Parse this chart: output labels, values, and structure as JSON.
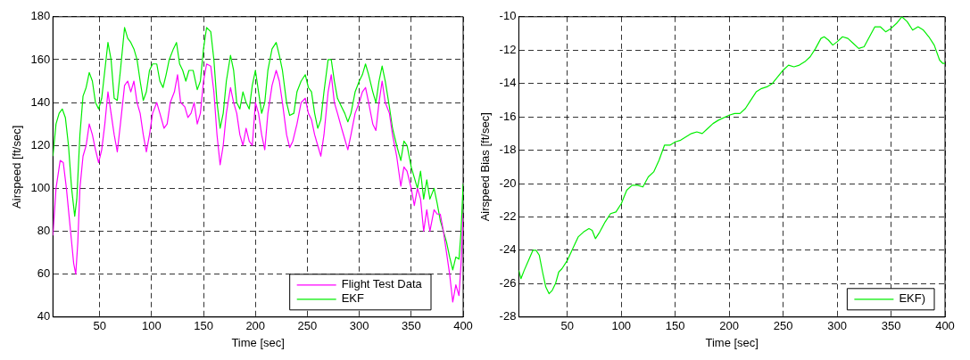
{
  "chart_data": [
    {
      "type": "line",
      "xlabel": "Time [sec]",
      "ylabel": "Airspeed [ft/sec]",
      "xlim": [
        5,
        400
      ],
      "ylim": [
        40,
        180
      ],
      "xticks": [
        50,
        100,
        150,
        200,
        250,
        300,
        350,
        400
      ],
      "yticks": [
        40,
        60,
        80,
        100,
        120,
        140,
        160,
        180
      ],
      "grid": true,
      "legend": "bottom right",
      "series": [
        {
          "name": "Flight Test Data",
          "color": "#ff00ff",
          "x": [
            5,
            8,
            12,
            15,
            18,
            22,
            25,
            27,
            29,
            31,
            34,
            37,
            40,
            43,
            46,
            49,
            52,
            55,
            58,
            61,
            64,
            67,
            70,
            74,
            77,
            80,
            83,
            86,
            89,
            92,
            95,
            98,
            101,
            105,
            108,
            112,
            115,
            118,
            122,
            125,
            128,
            132,
            135,
            138,
            141,
            144,
            147,
            150,
            153,
            157,
            160,
            163,
            166,
            169,
            172,
            176,
            179,
            182,
            185,
            188,
            191,
            194,
            197,
            200,
            203,
            206,
            209,
            212,
            216,
            220,
            223,
            226,
            230,
            233,
            236,
            240,
            244,
            248,
            251,
            254,
            257,
            260,
            263,
            266,
            270,
            273,
            276,
            279,
            283,
            286,
            289,
            292,
            296,
            300,
            303,
            306,
            309,
            313,
            316,
            319,
            322,
            325,
            329,
            332,
            336,
            340,
            343,
            346,
            350,
            353,
            356,
            359,
            362,
            365,
            368,
            372,
            375,
            378,
            381,
            384,
            387,
            390,
            393,
            396,
            398,
            400
          ],
          "values": [
            78,
            100,
            113,
            112,
            100,
            80,
            65,
            60,
            75,
            100,
            115,
            120,
            130,
            125,
            118,
            112,
            118,
            130,
            145,
            135,
            125,
            117,
            130,
            148,
            150,
            145,
            150,
            140,
            135,
            125,
            117,
            125,
            135,
            140,
            135,
            128,
            130,
            140,
            145,
            153,
            140,
            138,
            133,
            135,
            140,
            130,
            135,
            150,
            158,
            157,
            145,
            125,
            111,
            120,
            135,
            147,
            140,
            135,
            125,
            120,
            128,
            122,
            120,
            140,
            135,
            125,
            118,
            135,
            148,
            155,
            150,
            140,
            125,
            119,
            122,
            130,
            140,
            142,
            135,
            132,
            125,
            120,
            115,
            125,
            145,
            153,
            140,
            135,
            128,
            123,
            118,
            125,
            135,
            140,
            145,
            147,
            140,
            130,
            127,
            140,
            150,
            140,
            135,
            125,
            115,
            101,
            110,
            108,
            100,
            92,
            100,
            95,
            80,
            90,
            80,
            90,
            88,
            88,
            80,
            70,
            60,
            47,
            55,
            50,
            65,
            88
          ]
        },
        {
          "name": "EKF",
          "color": "#00ee00",
          "x": [
            5,
            8,
            11,
            14,
            17,
            20,
            23,
            26,
            28,
            31,
            34,
            37,
            40,
            43,
            46,
            49,
            52,
            55,
            58,
            61,
            64,
            67,
            70,
            74,
            77,
            80,
            83,
            86,
            89,
            92,
            95,
            98,
            101,
            105,
            108,
            111,
            114,
            117,
            121,
            124,
            127,
            130,
            133,
            136,
            140,
            144,
            147,
            150,
            153,
            157,
            160,
            163,
            166,
            169,
            172,
            176,
            179,
            182,
            185,
            188,
            191,
            194,
            197,
            200,
            203,
            206,
            209,
            212,
            216,
            220,
            223,
            226,
            230,
            233,
            237,
            240,
            244,
            248,
            251,
            254,
            257,
            260,
            263,
            266,
            270,
            273,
            276,
            279,
            283,
            286,
            289,
            292,
            296,
            300,
            303,
            306,
            309,
            313,
            316,
            319,
            322,
            325,
            329,
            332,
            336,
            340,
            343,
            346,
            350,
            353,
            356,
            359,
            362,
            365,
            368,
            372,
            375,
            378,
            381,
            384,
            387,
            390,
            393,
            396,
            398,
            400
          ],
          "values": [
            115,
            130,
            135,
            137,
            133,
            120,
            100,
            87,
            95,
            125,
            143,
            147,
            154,
            150,
            140,
            137,
            142,
            155,
            168,
            160,
            142,
            141,
            155,
            175,
            170,
            168,
            165,
            160,
            150,
            141,
            145,
            155,
            158,
            158,
            150,
            147,
            153,
            160,
            165,
            168,
            158,
            155,
            150,
            155,
            155,
            146,
            150,
            165,
            175,
            173,
            160,
            140,
            128,
            135,
            150,
            162,
            155,
            140,
            137,
            145,
            140,
            137,
            148,
            155,
            145,
            135,
            140,
            155,
            165,
            168,
            162,
            155,
            140,
            134,
            135,
            145,
            150,
            153,
            147,
            145,
            135,
            128,
            132,
            145,
            160,
            160,
            150,
            142,
            138,
            135,
            131,
            135,
            145,
            150,
            153,
            158,
            153,
            145,
            140,
            150,
            157,
            150,
            138,
            128,
            120,
            113,
            122,
            120,
            110,
            105,
            100,
            108,
            95,
            104,
            95,
            100,
            93,
            85,
            80,
            75,
            68,
            62,
            68,
            67,
            80,
            102
          ]
        }
      ]
    },
    {
      "type": "line",
      "xlabel": "Time [sec]",
      "ylabel": "Airspeed Bias [ft/sec]",
      "xlim": [
        5,
        400
      ],
      "ylim": [
        -28,
        -10
      ],
      "xticks": [
        50,
        100,
        150,
        200,
        250,
        300,
        350,
        400
      ],
      "yticks": [
        -28,
        -26,
        -24,
        -22,
        -20,
        -18,
        -16,
        -14,
        -12,
        -10
      ],
      "grid": true,
      "legend": "bottom right",
      "series": [
        {
          "name": "EKF)",
          "color": "#00ee00",
          "x": [
            5,
            7,
            10,
            14,
            18,
            21,
            24,
            27,
            30,
            33,
            36,
            39,
            42,
            45,
            50,
            55,
            60,
            65,
            70,
            73,
            76,
            80,
            85,
            90,
            95,
            100,
            105,
            110,
            115,
            120,
            125,
            130,
            135,
            140,
            145,
            150,
            155,
            160,
            165,
            170,
            175,
            180,
            185,
            190,
            200,
            205,
            210,
            215,
            220,
            225,
            230,
            235,
            240,
            245,
            250,
            255,
            260,
            265,
            270,
            275,
            280,
            285,
            288,
            292,
            296,
            300,
            305,
            310,
            315,
            320,
            325,
            330,
            335,
            340,
            345,
            350,
            355,
            360,
            365,
            370,
            375,
            380,
            385,
            390,
            395,
            398,
            400
          ],
          "values": [
            -25.2,
            -25.7,
            -25.2,
            -24.6,
            -24,
            -24,
            -24.3,
            -25.3,
            -26.2,
            -26.6,
            -26.4,
            -26,
            -25.3,
            -25.1,
            -24.6,
            -23.9,
            -23.2,
            -22.9,
            -22.7,
            -22.8,
            -23.3,
            -22.9,
            -22.3,
            -21.8,
            -21.7,
            -21.2,
            -20.4,
            -20.1,
            -20.1,
            -20.2,
            -19.6,
            -19.3,
            -18.6,
            -17.7,
            -17.7,
            -17.5,
            -17.4,
            -17.2,
            -17,
            -16.9,
            -17,
            -16.7,
            -16.4,
            -16.2,
            -15.9,
            -15.8,
            -15.8,
            -15.5,
            -15,
            -14.5,
            -14.3,
            -14.2,
            -14,
            -13.6,
            -13.2,
            -12.9,
            -13,
            -12.9,
            -12.7,
            -12.4,
            -11.9,
            -11.3,
            -11.2,
            -11.4,
            -11.7,
            -11.5,
            -11.2,
            -11.3,
            -11.6,
            -11.9,
            -11.8,
            -11.2,
            -10.6,
            -10.6,
            -10.9,
            -10.7,
            -10.4,
            -10,
            -10.3,
            -10.8,
            -10.6,
            -10.8,
            -11.2,
            -11.7,
            -12.6,
            -12.8,
            -12.8
          ]
        }
      ]
    }
  ]
}
